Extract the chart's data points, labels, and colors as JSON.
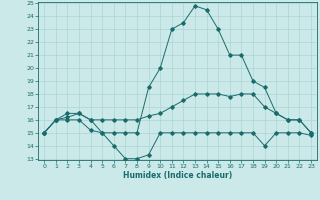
{
  "title": "",
  "xlabel": "Humidex (Indice chaleur)",
  "ylabel": "",
  "bg_color": "#cce9e9",
  "line_color": "#1a6b6b",
  "grid_color": "#aad4d4",
  "ylim": [
    13,
    25
  ],
  "xlim": [
    -0.5,
    23.5
  ],
  "yticks": [
    13,
    14,
    15,
    16,
    17,
    18,
    19,
    20,
    21,
    22,
    23,
    24,
    25
  ],
  "xticks": [
    0,
    1,
    2,
    3,
    4,
    5,
    6,
    7,
    8,
    9,
    10,
    11,
    12,
    13,
    14,
    15,
    16,
    17,
    18,
    19,
    20,
    21,
    22,
    23
  ],
  "line1": [
    15.0,
    16.0,
    16.0,
    16.0,
    15.2,
    15.0,
    14.0,
    13.0,
    13.0,
    13.3,
    15.0,
    15.0,
    15.0,
    15.0,
    15.0,
    15.0,
    15.0,
    15.0,
    15.0,
    14.0,
    15.0,
    15.0,
    15.0,
    14.8
  ],
  "line2": [
    15.0,
    16.0,
    16.2,
    16.5,
    16.0,
    16.0,
    16.0,
    16.0,
    16.0,
    16.3,
    16.5,
    17.0,
    17.5,
    18.0,
    18.0,
    18.0,
    17.8,
    18.0,
    18.0,
    17.0,
    16.5,
    16.0,
    16.0,
    15.0
  ],
  "line3": [
    15.0,
    16.0,
    16.5,
    16.5,
    16.0,
    15.0,
    15.0,
    15.0,
    15.0,
    18.5,
    20.0,
    23.0,
    23.5,
    24.8,
    24.5,
    23.0,
    21.0,
    21.0,
    19.0,
    18.5,
    16.5,
    16.0,
    16.0,
    15.0
  ]
}
